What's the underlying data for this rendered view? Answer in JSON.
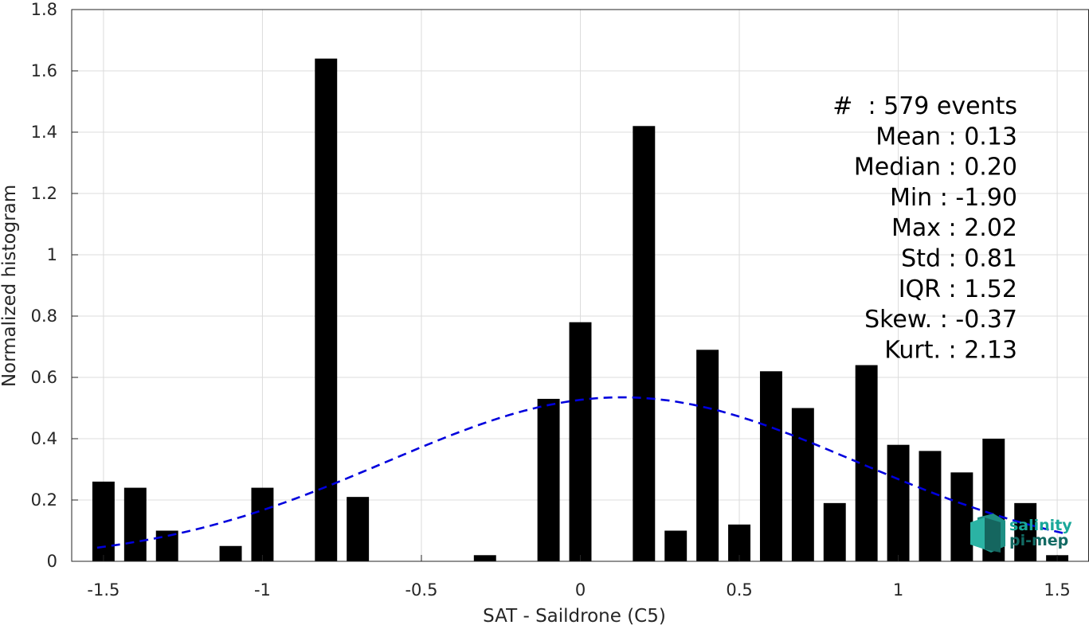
{
  "chart_data": {
    "type": "bar",
    "xlabel": "SAT - Saildrone (C5)",
    "ylabel": "Normalized histogram",
    "xlim": [
      -1.6,
      1.6
    ],
    "ylim": [
      0,
      1.8
    ],
    "grid": true,
    "xticks": [
      -1.5,
      -1,
      -0.5,
      0,
      0.5,
      1,
      1.5
    ],
    "xtick_labels": [
      "-1.5",
      "-1",
      "-0.5",
      "0",
      "0.5",
      "1",
      "1.5"
    ],
    "yticks": [
      0,
      0.2,
      0.4,
      0.6,
      0.8,
      1,
      1.2,
      1.4,
      1.6,
      1.8
    ],
    "ytick_labels": [
      "0",
      "0.2",
      "0.4",
      "0.6",
      "0.8",
      "1",
      "1.2",
      "1.4",
      "1.6",
      "1.8"
    ],
    "bar_width": 0.07,
    "bar_color": "#000000",
    "bars": [
      {
        "x": -1.5,
        "y": 0.26
      },
      {
        "x": -1.4,
        "y": 0.24
      },
      {
        "x": -1.3,
        "y": 0.1
      },
      {
        "x": -1.1,
        "y": 0.05
      },
      {
        "x": -1.0,
        "y": 0.24
      },
      {
        "x": -0.8,
        "y": 1.64
      },
      {
        "x": -0.7,
        "y": 0.21
      },
      {
        "x": -0.3,
        "y": 0.02
      },
      {
        "x": -0.1,
        "y": 0.53
      },
      {
        "x": 0.0,
        "y": 0.78
      },
      {
        "x": 0.2,
        "y": 1.42
      },
      {
        "x": 0.3,
        "y": 0.1
      },
      {
        "x": 0.4,
        "y": 0.69
      },
      {
        "x": 0.5,
        "y": 0.12
      },
      {
        "x": 0.6,
        "y": 0.62
      },
      {
        "x": 0.7,
        "y": 0.5
      },
      {
        "x": 0.8,
        "y": 0.19
      },
      {
        "x": 0.9,
        "y": 0.64
      },
      {
        "x": 1.0,
        "y": 0.38
      },
      {
        "x": 1.1,
        "y": 0.36
      },
      {
        "x": 1.2,
        "y": 0.29
      },
      {
        "x": 1.3,
        "y": 0.4
      },
      {
        "x": 1.4,
        "y": 0.19
      },
      {
        "x": 1.5,
        "y": 0.02
      }
    ],
    "fit_curve": {
      "style": "dashed",
      "color": "#0000dd",
      "mean": 0.13,
      "std": 0.74,
      "peak": 0.535,
      "x_range": [
        -1.52,
        1.52
      ]
    },
    "stats": [
      "#  : 579 events",
      "Mean : 0.13",
      "Median : 0.20",
      "Min : -1.90",
      "Max : 2.02",
      "Std : 0.81",
      "IQR : 1.52",
      "Skew. : -0.37",
      "Kurt. : 2.13"
    ]
  },
  "logo": {
    "line1": "salinity",
    "line2": "pi-mep",
    "color1": "#1aa89a",
    "color2": "#126a63"
  }
}
